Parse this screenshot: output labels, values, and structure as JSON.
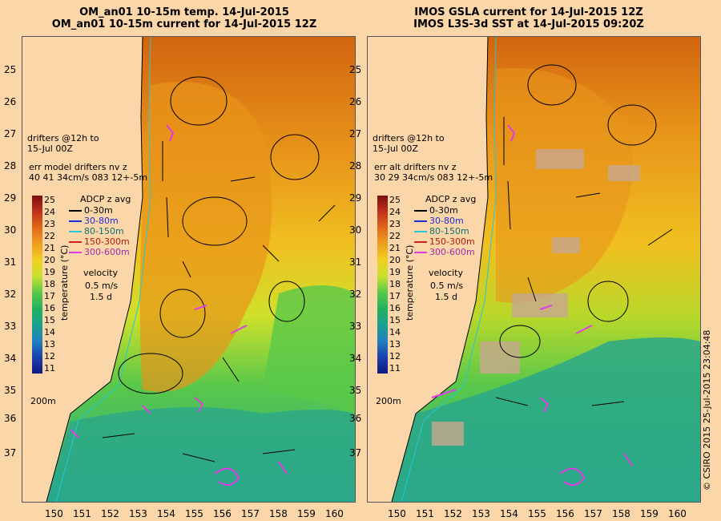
{
  "left_panel": {
    "title_line1": "OM_an01 10-15m temp. 14-Jul-2015",
    "title_line2": "OM_an01 10-15m current for 14-Jul-2015 12Z",
    "drifters_line1": "drifters @12h to",
    "drifters_line2": "15-Jul 00Z",
    "err_line1": "err model drifters nv z",
    "err_line2": "40 41 34cm/s 083 12+-5m"
  },
  "right_panel": {
    "title_line1": "IMOS GSLA current for 14-Jul-2015 12Z",
    "title_line2": "IMOS L3S-3d SST at 14-Jul-2015 09:20Z",
    "drifters_line1": "drifters @12h to",
    "drifters_line2": "15-Jul 00Z",
    "err_line1": "err alt drifters nv z",
    "err_line2": "30 29 34cm/s 083 12+-5m"
  },
  "colorbar": {
    "title": "temperature (°C)",
    "ticks": [
      "25",
      "24",
      "23",
      "22",
      "21",
      "20",
      "19",
      "18",
      "17",
      "16",
      "15",
      "14",
      "13",
      "12",
      "11"
    ]
  },
  "adcp_legend": {
    "title": "ADCP z avg",
    "items": [
      {
        "label": "0-30m",
        "color": "#000000"
      },
      {
        "label": "30-80m",
        "color": "#1e2dd8"
      },
      {
        "label": "80-150m",
        "color": "#22c7d8"
      },
      {
        "label": "150-300m",
        "color": "#d8201e"
      },
      {
        "label": "300-600m",
        "color": "#e23ce8"
      }
    ]
  },
  "velocity": {
    "label": "velocity",
    "speed": "0.5 m/s",
    "time": "1.5 d"
  },
  "isobath_label": "200m",
  "y_axis_lat": [
    "25",
    "26",
    "27",
    "28",
    "29",
    "30",
    "31",
    "32",
    "33",
    "34",
    "35",
    "36",
    "37"
  ],
  "x_axis_lon": [
    "150",
    "151",
    "152",
    "153",
    "154",
    "155",
    "156",
    "157",
    "158",
    "159",
    "160"
  ],
  "credit": "© CSIRO 2015   25-Jul-2015 23:04:48",
  "colors": {
    "land": "#fbd6a8",
    "sea_warm": "#e8941a",
    "sea_mid": "#e8d21e",
    "sea_cool": "#59c84a",
    "sea_cold": "#2aa88a",
    "cloud": "#c8a890",
    "drifter": "#e23ce8"
  }
}
